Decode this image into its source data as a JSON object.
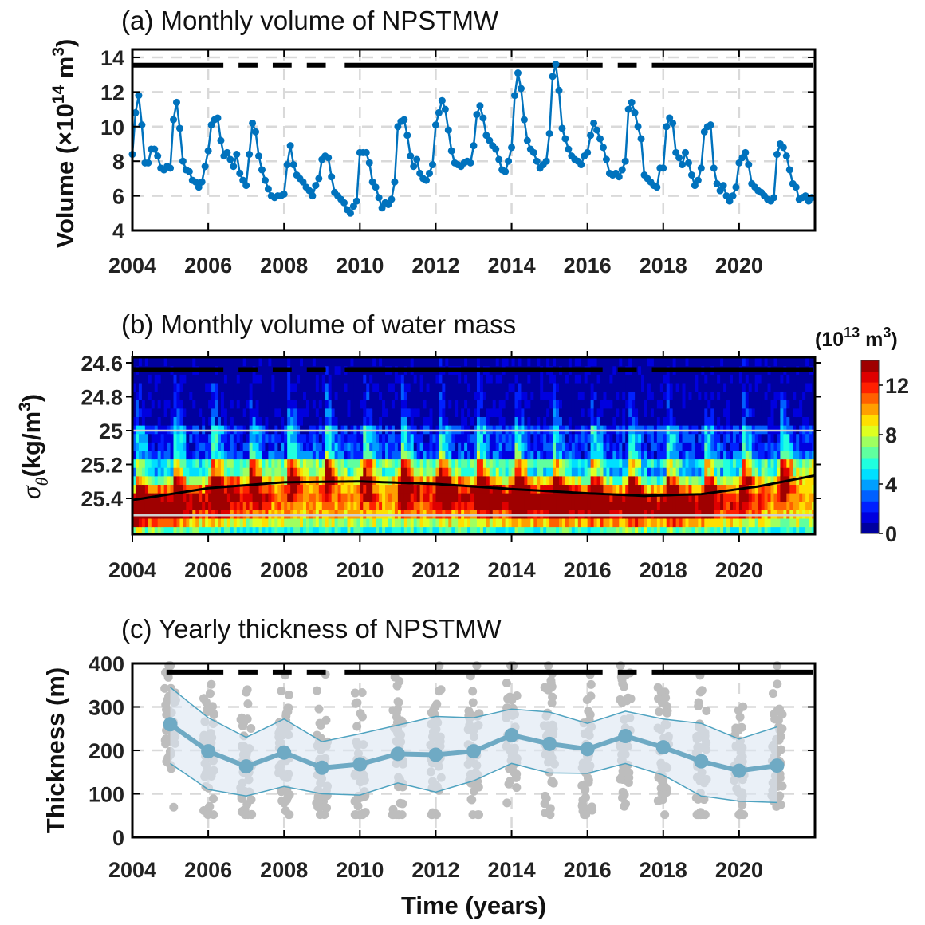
{
  "chart_data": [
    {
      "type": "line",
      "title": "(a) Monthly volume of NPSTMW",
      "ylabel": "Volume (×10",
      "ylabel_exp": "14",
      "ylabel_unit": " m",
      "ylabel_unit_exp": "3",
      "ylabel_end": ")",
      "xlim": [
        2004,
        2022
      ],
      "ylim": [
        4,
        14.46
      ],
      "xticks": [
        "2004",
        "2006",
        "2008",
        "2010",
        "2012",
        "2014",
        "2016",
        "2018",
        "2020"
      ],
      "yticks": [
        "4",
        "6",
        "8",
        "10",
        "12",
        "14"
      ],
      "grid": true,
      "color": "#0072BD",
      "series": [
        {
          "x_start": "2004-01",
          "frequency": "monthly",
          "values": [
            8.4,
            10.8,
            11.8,
            10.1,
            7.9,
            7.9,
            8.7,
            8.7,
            8.3,
            7.6,
            7.5,
            7.7,
            7.6,
            10.4,
            11.4,
            9.9,
            8.0,
            7.5,
            7.4,
            6.9,
            6.8,
            6.5,
            6.8,
            7.7,
            8.6,
            10.1,
            10.4,
            10.5,
            9.2,
            8.3,
            8.5,
            8.1,
            7.7,
            8.4,
            7.3,
            6.9,
            6.6,
            8.4,
            10.2,
            9.7,
            8.3,
            7.5,
            6.9,
            6.4,
            6.0,
            5.9,
            6.0,
            6.0,
            6.1,
            7.8,
            8.9,
            7.8,
            7.2,
            7.0,
            6.8,
            6.5,
            6.3,
            6.0,
            6.6,
            7.0,
            8.1,
            8.3,
            8.2,
            7.1,
            6.2,
            6.0,
            5.8,
            5.6,
            5.2,
            5.0,
            5.4,
            5.7,
            8.5,
            8.5,
            8.5,
            7.9,
            6.8,
            6.5,
            5.9,
            5.3,
            5.6,
            5.5,
            5.8,
            6.8,
            10.0,
            10.3,
            10.4,
            9.5,
            8.3,
            7.7,
            8.1,
            7.3,
            7.0,
            6.9,
            7.3,
            7.8,
            10.1,
            10.8,
            11.5,
            11.0,
            9.8,
            8.6,
            7.9,
            7.8,
            7.7,
            7.9,
            8.0,
            7.9,
            8.9,
            10.7,
            11.2,
            10.5,
            9.5,
            9.2,
            8.9,
            8.7,
            8.1,
            7.5,
            7.4,
            8.0,
            8.8,
            11.8,
            13.1,
            12.2,
            10.4,
            9.2,
            8.7,
            8.5,
            8.0,
            7.6,
            7.8,
            8.0,
            9.6,
            12.9,
            13.6,
            12.1,
            9.9,
            9.3,
            8.7,
            8.3,
            8.1,
            8.0,
            7.8,
            8.3,
            8.5,
            9.5,
            10.2,
            9.8,
            9.3,
            8.8,
            8.1,
            7.3,
            7.2,
            7.3,
            7.1,
            7.5,
            8.0,
            11.0,
            11.4,
            10.8,
            10.0,
            9.3,
            7.2,
            7.0,
            6.8,
            6.6,
            6.5,
            7.6,
            7.6,
            10.0,
            10.5,
            10.2,
            8.5,
            8.2,
            7.8,
            8.5,
            7.9,
            7.2,
            6.6,
            6.9,
            7.6,
            9.7,
            10.0,
            10.1,
            7.6,
            6.7,
            6.3,
            6.6,
            6.0,
            5.7,
            6.0,
            6.5,
            7.9,
            8.2,
            8.5,
            7.8,
            6.7,
            6.5,
            6.3,
            6.2,
            6.0,
            5.8,
            5.7,
            5.9,
            8.4,
            9.0,
            8.8,
            8.3,
            7.5,
            6.7,
            6.5,
            5.8,
            5.9,
            6.0,
            5.7,
            5.9
          ]
        }
      ],
      "data_coverage_segments": [
        [
          2004.0,
          2006.4
        ],
        [
          2006.8,
          2007.3
        ],
        [
          2007.7,
          2008.2
        ],
        [
          2008.6,
          2009.1
        ],
        [
          2009.6,
          2016.4
        ],
        [
          2016.8,
          2017.3
        ],
        [
          2017.7,
          2021.95
        ]
      ],
      "coverage_level": 13.55
    },
    {
      "type": "heatmap",
      "title": "(b) Monthly volume of water mass",
      "ylabel_sigma": "σ",
      "ylabel_sub": "θ",
      "ylabel_rest": "(kg/m",
      "ylabel_exp": "3",
      "ylabel_end": ")",
      "xlim": [
        2004,
        2022
      ],
      "ylim": [
        25.61,
        24.57
      ],
      "y_reversed": true,
      "xticks": [
        "2004",
        "2006",
        "2008",
        "2010",
        "2012",
        "2014",
        "2016",
        "2018",
        "2020"
      ],
      "yticks": [
        "24.6",
        "24.8",
        "25",
        "25.2",
        "25.4"
      ],
      "sigma_bin_width": 0.05,
      "colormap": "jet",
      "colorbar": {
        "label": "(10",
        "label_exp": "13",
        "label_unit": " m",
        "label_unit_exp": "3",
        "label_end": ")",
        "range": [
          0,
          14
        ],
        "levels": 16,
        "ticks": [
          "0",
          "4",
          "8",
          "12"
        ]
      },
      "reference_lines": [
        25.0,
        25.5
      ],
      "reference_line_color": "#d0d0d0",
      "core_density_curve": [
        [
          2004,
          25.41
        ],
        [
          2006,
          25.34
        ],
        [
          2008,
          25.305
        ],
        [
          2010,
          25.3
        ],
        [
          2012,
          25.315
        ],
        [
          2014,
          25.345
        ],
        [
          2016,
          25.37
        ],
        [
          2017.5,
          25.385
        ],
        [
          2019,
          25.375
        ],
        [
          2020.5,
          25.33
        ],
        [
          2022,
          25.265
        ]
      ],
      "coverage_level": 24.64
    },
    {
      "type": "scatter",
      "title": "(c) Yearly thickness of NPSTMW",
      "ylabel": "Thickness (m)",
      "xlabel": "Time (years)",
      "xlim": [
        2004,
        2022
      ],
      "ylim": [
        0,
        400
      ],
      "xticks": [
        "2004",
        "2006",
        "2008",
        "2010",
        "2012",
        "2014",
        "2016",
        "2018",
        "2020"
      ],
      "yticks": [
        "0",
        "100",
        "200",
        "300",
        "400"
      ],
      "grid": true,
      "mean_color": "#6FAAC4",
      "band_color": "#DCE6F2",
      "point_color": "#BDBDBD",
      "years": [
        2005,
        2006,
        2007,
        2008,
        2009,
        2010,
        2011,
        2012,
        2013,
        2014,
        2015,
        2016,
        2017,
        2018,
        2019,
        2020,
        2021
      ],
      "mean": [
        260,
        198,
        163,
        195,
        160,
        168,
        192,
        190,
        198,
        235,
        215,
        203,
        233,
        207,
        175,
        153,
        165
      ],
      "upper": [
        345,
        275,
        230,
        272,
        220,
        238,
        258,
        278,
        275,
        295,
        288,
        262,
        290,
        272,
        262,
        226,
        254
      ],
      "lower": [
        170,
        110,
        95,
        117,
        100,
        97,
        125,
        104,
        130,
        170,
        148,
        147,
        170,
        143,
        95,
        83,
        80
      ],
      "data_coverage_segments": [
        [
          2004.9,
          2006.4
        ],
        [
          2006.8,
          2007.3
        ],
        [
          2007.7,
          2008.2
        ],
        [
          2008.6,
          2009.1
        ],
        [
          2009.6,
          2016.4
        ],
        [
          2016.8,
          2017.3
        ],
        [
          2017.7,
          2021.95
        ]
      ],
      "coverage_level": 380
    }
  ]
}
